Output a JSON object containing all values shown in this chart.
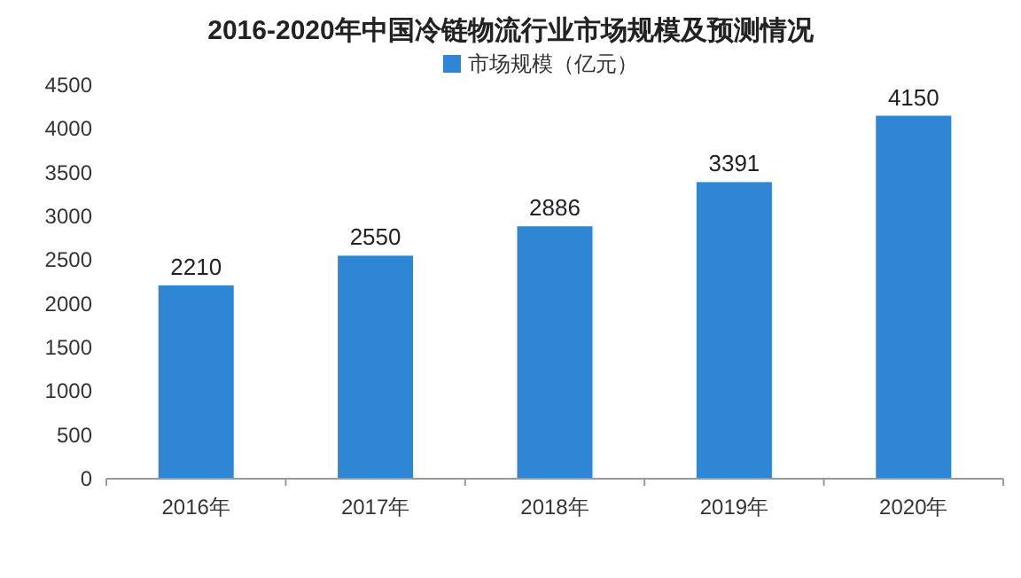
{
  "chart_data": {
    "type": "bar",
    "title": "2016-2020年中国冷链物流行业市场规模及预测情况",
    "categories": [
      "2016年",
      "2017年",
      "2018年",
      "2019年",
      "2020年"
    ],
    "series": [
      {
        "name": "市场规模（亿元）",
        "color": "#2f86d4",
        "values": [
          2210,
          2550,
          2886,
          3391,
          4150
        ]
      }
    ],
    "ylim": [
      0,
      4500
    ],
    "yticks": [
      0,
      500,
      1000,
      1500,
      2000,
      2500,
      3000,
      3500,
      4000,
      4500
    ],
    "data_labels": true,
    "legend": "top",
    "grid": false
  }
}
